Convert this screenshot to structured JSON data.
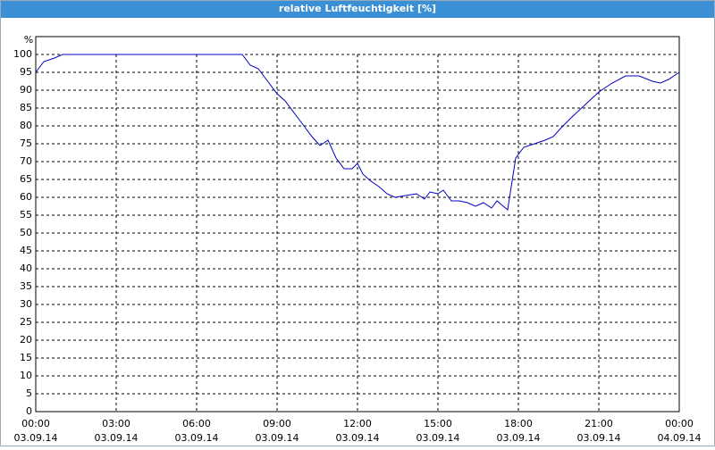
{
  "chart_data": {
    "type": "line",
    "title": "relative Luftfeuchtigkeit [%]",
    "y_label": "%",
    "x": [
      0,
      0.3,
      0.7,
      1.0,
      7.7,
      8.0,
      8.3,
      8.7,
      9.0,
      9.3,
      9.7,
      10.0,
      10.3,
      10.6,
      10.9,
      11.2,
      11.5,
      11.8,
      12.0,
      12.2,
      12.5,
      12.8,
      13.1,
      13.4,
      13.8,
      14.2,
      14.5,
      14.7,
      15.0,
      15.2,
      15.5,
      15.8,
      16.1,
      16.4,
      16.7,
      17.0,
      17.2,
      17.6,
      17.9,
      18.2,
      18.6,
      19.0,
      19.3,
      19.6,
      20.0,
      20.5,
      21.0,
      21.5,
      22.0,
      22.5,
      23.0,
      23.3,
      23.6,
      24.0
    ],
    "series": [
      {
        "name": "relative Luftfeuchtigkeit",
        "color": "#0000c0",
        "values": [
          95,
          98,
          99,
          100,
          100,
          97,
          96,
          92,
          89,
          87,
          83,
          80,
          77,
          74.5,
          76,
          71,
          68,
          68,
          69.5,
          66.5,
          64.5,
          63,
          61,
          60,
          60.5,
          61,
          59.5,
          61.5,
          61,
          62,
          59,
          59,
          58.5,
          57.5,
          58.5,
          57,
          59,
          56.5,
          71,
          74,
          75,
          76,
          77,
          79.5,
          82.5,
          86,
          89.5,
          92,
          94,
          94,
          92.5,
          92,
          93,
          95
        ]
      }
    ],
    "xlim": [
      0,
      24
    ],
    "xticks": [
      {
        "value": 0,
        "label": "00:00"
      },
      {
        "value": 3,
        "label": "03:00"
      },
      {
        "value": 6,
        "label": "06:00"
      },
      {
        "value": 9,
        "label": "09:00"
      },
      {
        "value": 12,
        "label": "12:00"
      },
      {
        "value": 15,
        "label": "15:00"
      },
      {
        "value": 18,
        "label": "18:00"
      },
      {
        "value": 21,
        "label": "21:00"
      },
      {
        "value": 24,
        "label": "00:00"
      }
    ],
    "xtick_dates": [
      "03.09.14",
      "03.09.14",
      "03.09.14",
      "03.09.14",
      "03.09.14",
      "03.09.14",
      "03.09.14",
      "03.09.14",
      "04.09.14"
    ],
    "ylim": [
      0,
      100
    ],
    "yticks": [
      0,
      5,
      10,
      15,
      20,
      25,
      30,
      35,
      40,
      45,
      50,
      55,
      60,
      65,
      70,
      75,
      80,
      85,
      90,
      95,
      100
    ],
    "grid": true
  }
}
